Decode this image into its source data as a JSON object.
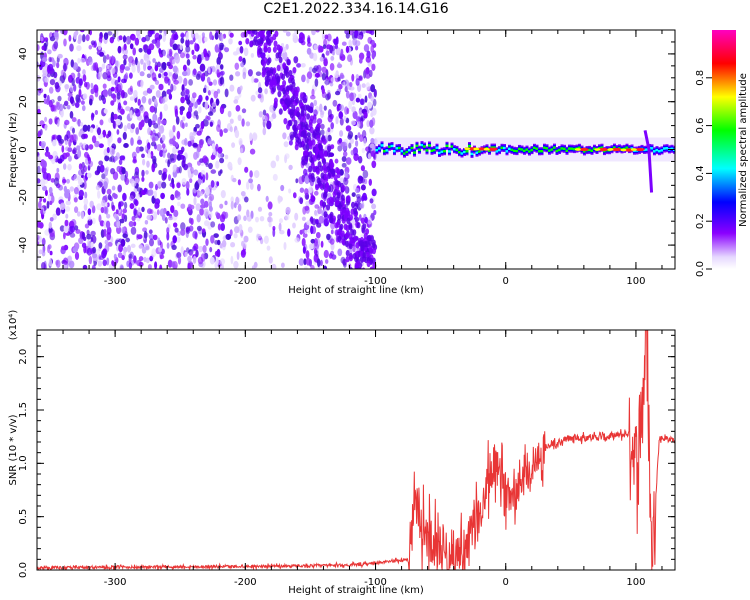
{
  "title": "C2E1.2022.334.16.14.G16",
  "chart_data": [
    {
      "type": "heatmap",
      "xlabel": "Height of straight line (km)",
      "ylabel": "Frequency (Hz)",
      "xlim": [
        -360,
        130
      ],
      "ylim": [
        -50,
        50
      ],
      "xticks": [
        -300,
        -200,
        -100,
        0,
        100
      ],
      "yticks": [
        -40,
        -20,
        0,
        20,
        40
      ],
      "colorbar": {
        "label": "Normalized spectral amplitude",
        "range": [
          0,
          1
        ],
        "ticks": [
          "0.0",
          "0.2",
          "0.4",
          "0.6",
          "0.8"
        ],
        "colormap": "rainbow-magenta"
      },
      "features": [
        {
          "name": "noise region",
          "x_range": [
            -360,
            -100
          ],
          "freq_spread": [
            -50,
            50
          ]
        },
        {
          "name": "signal line",
          "x_range": [
            -100,
            130
          ],
          "center_freq": 0
        }
      ]
    },
    {
      "type": "line",
      "xlabel": "Height of straight line (km)",
      "ylabel": "SNR (10 * v/v)",
      "scale_label": "(x10⁴)",
      "xlim": [
        -360,
        130
      ],
      "ylim": [
        0,
        2.25
      ],
      "xticks": [
        -300,
        -200,
        -100,
        0,
        100
      ],
      "yticks": [
        "0.0",
        "0.5",
        "1.0",
        "1.5",
        "2.0"
      ],
      "series": [
        {
          "name": "SNR",
          "color": "#e83535",
          "points": [
            [
              -360,
              0.02
            ],
            [
              -250,
              0.03
            ],
            [
              -150,
              0.04
            ],
            [
              -110,
              0.05
            ],
            [
              -75,
              0.1
            ],
            [
              -70,
              0.6
            ],
            [
              -60,
              0.3
            ],
            [
              -40,
              0.15
            ],
            [
              -30,
              0.2
            ],
            [
              -15,
              0.7
            ],
            [
              -10,
              1.0
            ],
            [
              0,
              0.7
            ],
            [
              10,
              0.8
            ],
            [
              30,
              1.15
            ],
            [
              50,
              1.24
            ],
            [
              80,
              1.25
            ],
            [
              95,
              1.28
            ],
            [
              102,
              1.0
            ],
            [
              108,
              2.25
            ],
            [
              112,
              0.1
            ],
            [
              118,
              1.24
            ],
            [
              130,
              1.22
            ]
          ]
        }
      ]
    }
  ]
}
